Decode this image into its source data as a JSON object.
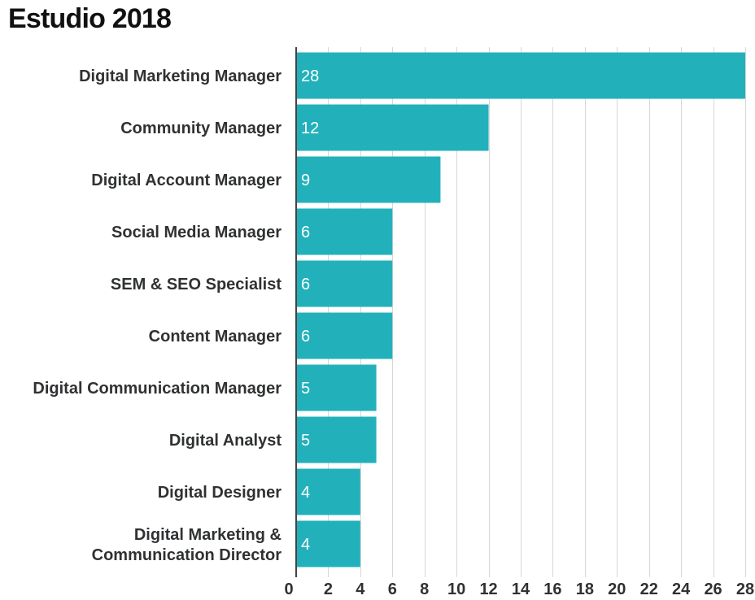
{
  "chart_data": {
    "type": "bar",
    "orientation": "horizontal",
    "title": "Estudio 2018",
    "categories": [
      "Digital Marketing Manager",
      "Community Manager",
      "Digital Account Manager",
      "Social Media Manager",
      "SEM & SEO Specialist",
      "Content Manager",
      "Digital Communication Manager",
      "Digital Analyst",
      "Digital Designer",
      "Digital Marketing & Communication Director"
    ],
    "values": [
      28,
      12,
      9,
      6,
      6,
      6,
      5,
      5,
      4,
      4
    ],
    "data_labels": [
      "28",
      "12",
      "9",
      "6",
      "6",
      "6",
      "5",
      "5",
      "4",
      "4"
    ],
    "xlim": [
      0,
      28
    ],
    "x_ticks": [
      0,
      2,
      4,
      6,
      8,
      10,
      12,
      14,
      16,
      18,
      20,
      22,
      24,
      26,
      28
    ],
    "tick_labels": [
      "0",
      "2",
      "4",
      "6",
      "8",
      "10",
      "12",
      "14",
      "16",
      "18",
      "20",
      "22",
      "24",
      "26",
      "28"
    ],
    "grid": "vertical",
    "legend": "none",
    "xlabel": "",
    "ylabel": "",
    "colors": {
      "bar": "#22b1bb",
      "grid": "#d7d7d7",
      "axis": "#444444",
      "label": "#2f3133",
      "data_label": "#ffffff"
    }
  }
}
